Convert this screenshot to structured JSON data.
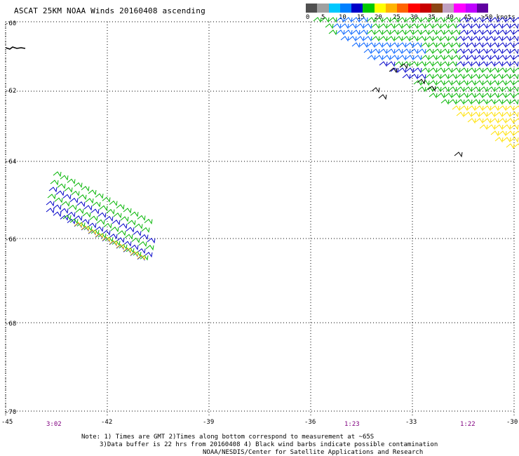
{
  "title": "ASCAT 25KM NOAA Winds 20160408 ascending",
  "legend": {
    "labels": [
      "0",
      "5",
      "10",
      "15",
      "20",
      "25",
      "30",
      "35",
      "40",
      "45",
      ">50 knots"
    ],
    "colors": [
      "#505050",
      "#a0a0a0",
      "#00c8ff",
      "#0080ff",
      "#0000c8",
      "#00c800",
      "#ffff00",
      "#ffb400",
      "#ff6400",
      "#ff0000",
      "#c80000",
      "#8b4513",
      "#c0a0c0",
      "#ff00ff",
      "#c000ff",
      "#6000a0"
    ]
  },
  "axes": {
    "lat_labels": [
      "-60",
      "-62",
      "-64",
      "-66",
      "-68",
      "-70"
    ],
    "lon_labels": [
      "-45",
      "-42",
      "-39",
      "-36",
      "-33",
      "-30"
    ]
  },
  "times": [
    "3:02",
    "1:23",
    "1:22"
  ],
  "notes": {
    "line1": "Note: 1) Times are GMT 2)Times along bottom correspond to measurement at ~65S",
    "line2": "3)Data buffer is 22 hrs from 20160408 4) Black wind barbs indicate possible contamination",
    "line3": "NOAA/NESDIS/Center for Satellite Applications and Research"
  },
  "colors": {
    "green": "#00b400",
    "blue": "#0000c8",
    "lightblue": "#0060ff",
    "yellow": "#ffe000",
    "orange": "#ffa000",
    "black": "#000000",
    "purple": "#800080"
  }
}
